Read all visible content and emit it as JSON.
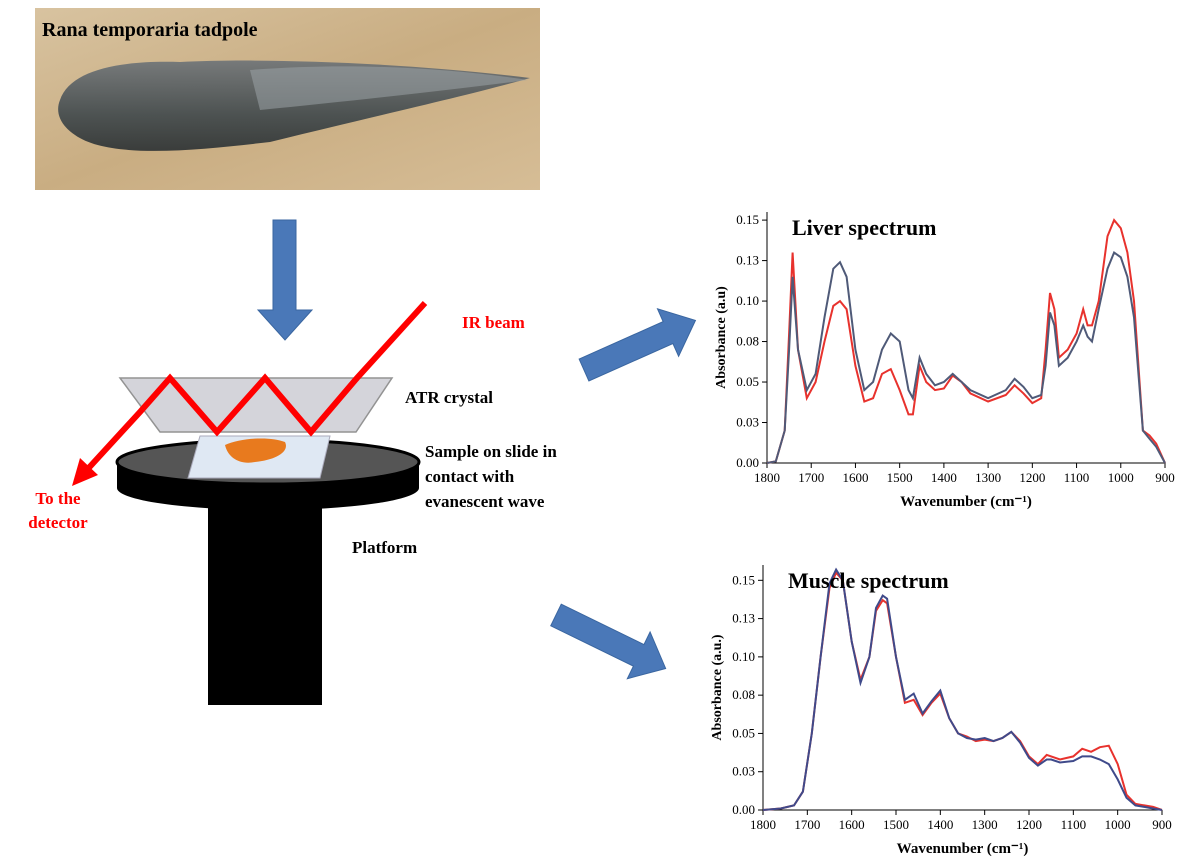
{
  "diagram": {
    "photo_caption": "Rana temporaria tadpole",
    "ir_beam": "IR beam",
    "atr_crystal": "ATR crystal",
    "sample_label": [
      "Sample on slide in",
      "contact with",
      "evanescent wave"
    ],
    "platform": "Platform",
    "detector_label": [
      "To the",
      "detector"
    ]
  },
  "chart_data": [
    {
      "type": "line",
      "title": "Liver spectrum",
      "x_label": "Wavenumber (cm⁻¹)",
      "y_label": "Absorbance (a.u)",
      "xlim": [
        1800,
        900
      ],
      "xticks": [
        1800,
        1700,
        1600,
        1500,
        1400,
        1300,
        1200,
        1100,
        1000,
        900
      ],
      "ylim": [
        0,
        0.155
      ],
      "yticks": [
        {
          "value": 0,
          "label": "0.00"
        },
        {
          "value": 0.025,
          "label": "0.03"
        },
        0.05,
        {
          "value": 0.075,
          "label": "0.08"
        },
        {
          "value": 0.1,
          "label": "0.10"
        },
        {
          "value": 0.125,
          "label": "0.13"
        },
        0.15
      ],
      "x": [
        1800,
        1780,
        1760,
        1750,
        1742,
        1730,
        1710,
        1690,
        1670,
        1650,
        1635,
        1620,
        1600,
        1580,
        1560,
        1540,
        1520,
        1500,
        1480,
        1470,
        1455,
        1440,
        1420,
        1400,
        1380,
        1360,
        1340,
        1300,
        1260,
        1240,
        1220,
        1200,
        1180,
        1170,
        1160,
        1150,
        1140,
        1120,
        1100,
        1085,
        1075,
        1065,
        1050,
        1030,
        1015,
        1000,
        985,
        970,
        950,
        935,
        920,
        900
      ],
      "series": [
        {
          "color": "#e8322d",
          "values": [
            0,
            0.001,
            0.02,
            0.08,
            0.13,
            0.07,
            0.04,
            0.05,
            0.075,
            0.097,
            0.1,
            0.095,
            0.06,
            0.038,
            0.04,
            0.055,
            0.058,
            0.045,
            0.03,
            0.03,
            0.06,
            0.05,
            0.045,
            0.046,
            0.054,
            0.05,
            0.043,
            0.038,
            0.042,
            0.048,
            0.043,
            0.037,
            0.04,
            0.07,
            0.105,
            0.095,
            0.065,
            0.07,
            0.08,
            0.095,
            0.085,
            0.085,
            0.1,
            0.14,
            0.15,
            0.145,
            0.13,
            0.1,
            0.02,
            0.017,
            0.012,
            0
          ]
        },
        {
          "color": "#4f5a78",
          "values": [
            0,
            0.001,
            0.02,
            0.07,
            0.115,
            0.07,
            0.045,
            0.055,
            0.09,
            0.12,
            0.124,
            0.115,
            0.07,
            0.045,
            0.05,
            0.07,
            0.08,
            0.075,
            0.045,
            0.04,
            0.065,
            0.055,
            0.048,
            0.05,
            0.055,
            0.05,
            0.045,
            0.04,
            0.045,
            0.052,
            0.047,
            0.04,
            0.042,
            0.06,
            0.093,
            0.085,
            0.06,
            0.065,
            0.075,
            0.085,
            0.078,
            0.075,
            0.095,
            0.12,
            0.13,
            0.127,
            0.115,
            0.09,
            0.02,
            0.015,
            0.01,
            0
          ]
        }
      ]
    },
    {
      "type": "line",
      "title": "Muscle spectrum",
      "x_label": "Wavenumber (cm⁻¹)",
      "y_label": "Absorbance (a.u.)",
      "xlim": [
        1800,
        900
      ],
      "xticks": [
        1800,
        1700,
        1600,
        1500,
        1400,
        1300,
        1200,
        1100,
        1000,
        900
      ],
      "ylim": [
        0,
        0.16
      ],
      "yticks": [
        {
          "value": 0,
          "label": "0.00"
        },
        {
          "value": 0.025,
          "label": "0.03"
        },
        0.05,
        {
          "value": 0.075,
          "label": "0.08"
        },
        {
          "value": 0.1,
          "label": "0.10"
        },
        {
          "value": 0.125,
          "label": "0.13"
        },
        0.15
      ],
      "x": [
        1800,
        1760,
        1730,
        1710,
        1690,
        1670,
        1650,
        1635,
        1620,
        1600,
        1580,
        1560,
        1545,
        1530,
        1520,
        1500,
        1480,
        1460,
        1440,
        1420,
        1400,
        1380,
        1360,
        1340,
        1320,
        1300,
        1280,
        1260,
        1240,
        1220,
        1200,
        1180,
        1170,
        1160,
        1150,
        1130,
        1100,
        1080,
        1060,
        1040,
        1020,
        1000,
        980,
        960,
        940,
        920,
        900
      ],
      "series": [
        {
          "color": "#e8322d",
          "values": [
            0,
            0.001,
            0.003,
            0.012,
            0.05,
            0.1,
            0.145,
            0.155,
            0.15,
            0.11,
            0.085,
            0.1,
            0.13,
            0.137,
            0.135,
            0.1,
            0.07,
            0.072,
            0.062,
            0.07,
            0.076,
            0.06,
            0.05,
            0.048,
            0.045,
            0.046,
            0.045,
            0.047,
            0.051,
            0.045,
            0.035,
            0.03,
            0.033,
            0.036,
            0.035,
            0.033,
            0.035,
            0.04,
            0.038,
            0.041,
            0.042,
            0.03,
            0.01,
            0.004,
            0.003,
            0.002,
            0
          ]
        },
        {
          "color": "#3f4a8a",
          "values": [
            0,
            0.001,
            0.003,
            0.012,
            0.05,
            0.1,
            0.148,
            0.157,
            0.15,
            0.11,
            0.083,
            0.1,
            0.132,
            0.14,
            0.138,
            0.1,
            0.072,
            0.076,
            0.063,
            0.071,
            0.078,
            0.06,
            0.05,
            0.047,
            0.046,
            0.047,
            0.045,
            0.047,
            0.051,
            0.044,
            0.034,
            0.029,
            0.031,
            0.033,
            0.033,
            0.031,
            0.032,
            0.035,
            0.035,
            0.033,
            0.03,
            0.02,
            0.008,
            0.003,
            0.002,
            0.001,
            0
          ]
        }
      ]
    }
  ]
}
